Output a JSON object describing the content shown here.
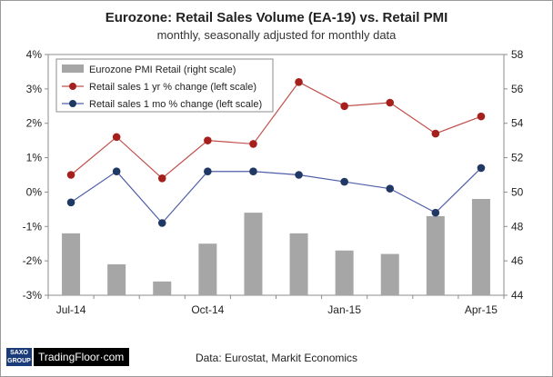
{
  "chart_data": {
    "type": "bar+line",
    "title": "Eurozone: Retail Sales Volume (EA-19) vs. Retail PMI",
    "subtitle": "monthly, seasonally adjusted for monthly data",
    "categories": [
      "Jul-14",
      "Aug-14",
      "Sep-14",
      "Oct-14",
      "Nov-14",
      "Dec-14",
      "Jan-15",
      "Feb-15",
      "Mar-15",
      "Apr-15"
    ],
    "x_tick_labels": [
      "Jul-14",
      "Oct-14",
      "Jan-15",
      "Apr-15"
    ],
    "y_left": {
      "min": -3,
      "max": 4,
      "step": 1,
      "tick_labels": [
        "-3%",
        "-2%",
        "-1%",
        "0%",
        "1%",
        "2%",
        "3%",
        "4%"
      ]
    },
    "y_right": {
      "min": 44,
      "max": 58,
      "step": 2,
      "tick_labels": [
        "44",
        "46",
        "48",
        "50",
        "52",
        "54",
        "56",
        "58"
      ]
    },
    "series": [
      {
        "name": "Eurozone PMI Retail (right scale)",
        "kind": "bar",
        "axis": "right",
        "color": "#a6a6a6",
        "values": [
          47.6,
          45.8,
          44.8,
          47.0,
          48.8,
          47.6,
          46.6,
          46.4,
          48.6,
          49.6
        ]
      },
      {
        "name": "Retail sales 1 yr % change (left scale)",
        "kind": "line",
        "axis": "left",
        "color": "#c0504d",
        "marker_color": "#a5201c",
        "values": [
          0.5,
          1.6,
          0.4,
          1.5,
          1.4,
          3.2,
          2.5,
          2.6,
          1.7,
          2.2
        ]
      },
      {
        "name": "Retail sales 1 mo % change (left scale)",
        "kind": "line",
        "axis": "left",
        "color": "#4f5fa8",
        "marker_color": "#1f3864",
        "values": [
          -0.3,
          0.6,
          -0.9,
          0.6,
          0.6,
          0.5,
          0.3,
          0.1,
          -0.6,
          0.7
        ]
      }
    ],
    "legend_position": "top-left",
    "grid": false
  },
  "footer": {
    "logo_top": "SAXO",
    "logo_bottom": "GROUP",
    "brand": "TradingFloor·com",
    "source": "Data: Eurostat, Markit Economics"
  }
}
